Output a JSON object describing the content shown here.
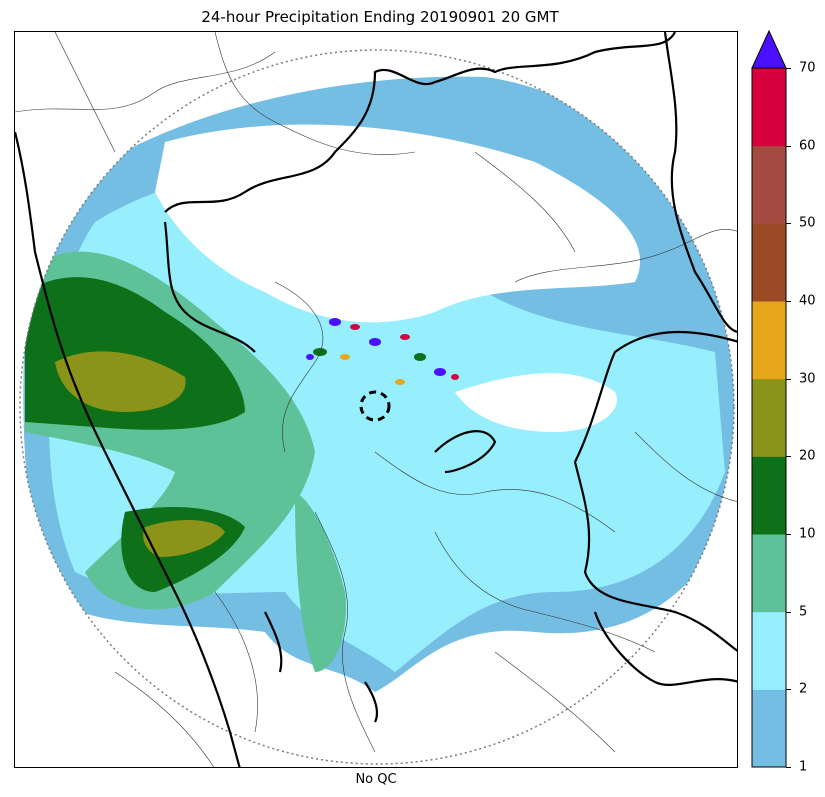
{
  "title": "24-hour Precipitation Ending 20190901 20 GMT",
  "xlabel": "No QC",
  "colorbar": {
    "ticks": [
      "1",
      "2",
      "5",
      "10",
      "20",
      "30",
      "40",
      "50",
      "60",
      "70"
    ],
    "colors": [
      "#74bde3",
      "#97eefc",
      "#5dc298",
      "#0e7018",
      "#8b9318",
      "#e6a81a",
      "#9c4a26",
      "#a44a40",
      "#d6003e"
    ],
    "extend_color": "#4a10ff"
  },
  "legend_semantics": {
    "units": "",
    "extend": "max"
  }
}
